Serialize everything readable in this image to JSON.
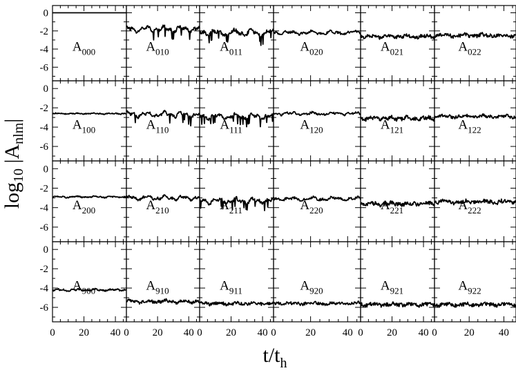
{
  "chart_data": {
    "type": "line",
    "layout": {
      "rows": 4,
      "cols": 6
    },
    "xlabel": {
      "main": "t/t",
      "sub": "h"
    },
    "ylabel": {
      "pre": "log",
      "pre_sub": "10",
      "mid": " |A",
      "mid_sub": "nlm",
      "post": "|"
    },
    "xlim": [
      0,
      47
    ],
    "ylim": [
      -7.5,
      0.8
    ],
    "xticks": [
      0,
      20,
      40
    ],
    "xtick_labels": [
      "0",
      "20",
      "40"
    ],
    "yticks": [
      0,
      -2,
      -4,
      -6
    ],
    "ytick_labels": [
      "0",
      "-2",
      "-4",
      "-6"
    ],
    "grid": false,
    "panels": [
      {
        "label": "A",
        "sub": "000",
        "mean": 0.0,
        "fluct": 0.0,
        "noise": 0.0
      },
      {
        "label": "A",
        "sub": "010",
        "mean": -1.8,
        "fluct": 0.35,
        "noise": 0.15
      },
      {
        "label": "A",
        "sub": "011",
        "mean": -2.2,
        "fluct": 0.35,
        "noise": 0.2
      },
      {
        "label": "A",
        "sub": "020",
        "mean": -2.2,
        "fluct": 0.2,
        "noise": 0.12
      },
      {
        "label": "A",
        "sub": "021",
        "mean": -2.6,
        "fluct": 0.15,
        "noise": 0.18
      },
      {
        "label": "A",
        "sub": "022",
        "mean": -2.5,
        "fluct": 0.15,
        "noise": 0.2
      },
      {
        "label": "A",
        "sub": "100",
        "mean": -2.6,
        "fluct": 0.05,
        "noise": 0.05
      },
      {
        "label": "A",
        "sub": "110",
        "mean": -2.7,
        "fluct": 0.3,
        "noise": 0.15
      },
      {
        "label": "A",
        "sub": "111",
        "mean": -2.9,
        "fluct": 0.3,
        "noise": 0.15
      },
      {
        "label": "A",
        "sub": "120",
        "mean": -2.6,
        "fluct": 0.15,
        "noise": 0.1
      },
      {
        "label": "A",
        "sub": "121",
        "mean": -3.1,
        "fluct": 0.15,
        "noise": 0.2
      },
      {
        "label": "A",
        "sub": "122",
        "mean": -2.9,
        "fluct": 0.15,
        "noise": 0.15
      },
      {
        "label": "A",
        "sub": "200",
        "mean": -2.9,
        "fluct": 0.08,
        "noise": 0.06
      },
      {
        "label": "A",
        "sub": "210",
        "mean": -3.0,
        "fluct": 0.25,
        "noise": 0.12
      },
      {
        "label": "A",
        "sub": "211",
        "mean": -3.3,
        "fluct": 0.3,
        "noise": 0.15
      },
      {
        "label": "A",
        "sub": "220",
        "mean": -3.1,
        "fluct": 0.2,
        "noise": 0.12
      },
      {
        "label": "A",
        "sub": "221",
        "mean": -3.6,
        "fluct": 0.15,
        "noise": 0.2
      },
      {
        "label": "A",
        "sub": "222",
        "mean": -3.4,
        "fluct": 0.15,
        "noise": 0.2
      },
      {
        "label": "A",
        "sub": "900",
        "mean": -4.2,
        "fluct": 0.1,
        "noise": 0.08
      },
      {
        "label": "A",
        "sub": "910",
        "mean": -5.4,
        "fluct": 0.15,
        "noise": 0.15
      },
      {
        "label": "A",
        "sub": "911",
        "mean": -5.6,
        "fluct": 0.12,
        "noise": 0.15
      },
      {
        "label": "A",
        "sub": "920",
        "mean": -5.6,
        "fluct": 0.12,
        "noise": 0.15
      },
      {
        "label": "A",
        "sub": "921",
        "mean": -5.7,
        "fluct": 0.12,
        "noise": 0.18
      },
      {
        "label": "A",
        "sub": "922",
        "mean": -5.7,
        "fluct": 0.12,
        "noise": 0.18
      }
    ]
  }
}
